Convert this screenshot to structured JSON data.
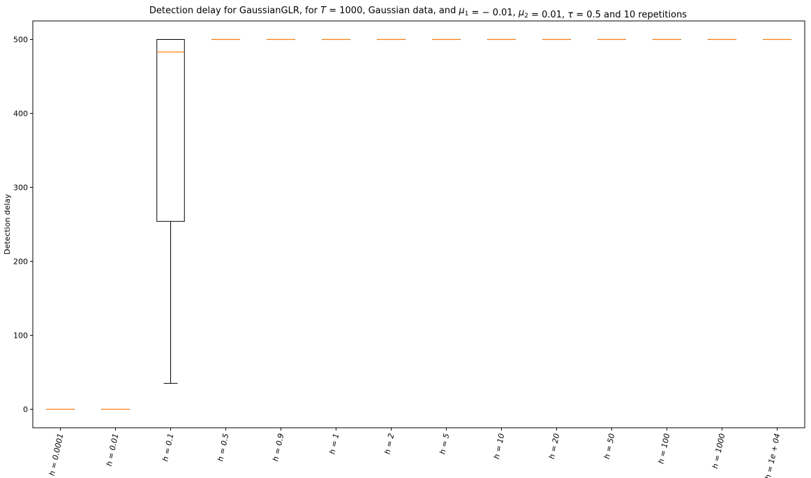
{
  "chart_data": {
    "type": "box",
    "title_text": "Detection delay for GaussianGLR, for T = 1000, Gaussian data, and μ₁ = − 0.01, μ₂ = 0.01, τ = 0.5 and 10 repetitions",
    "title_parts": [
      {
        "text": "Detection delay for GaussianGLR, for ",
        "italic": false
      },
      {
        "text": "T",
        "italic": true
      },
      {
        "text": " = 1000, Gaussian data, and ",
        "italic": false
      },
      {
        "text": "μ",
        "italic": true
      },
      {
        "text": "1",
        "sub": true
      },
      {
        "text": " = − 0.01, ",
        "italic": false
      },
      {
        "text": "μ",
        "italic": true
      },
      {
        "text": "2",
        "sub": true
      },
      {
        "text": " = 0.01, ",
        "italic": false
      },
      {
        "text": "τ",
        "italic": true
      },
      {
        "text": " = 0.5 and 10 repetitions",
        "italic": false
      }
    ],
    "ylabel": "Detection delay",
    "xlabel": "",
    "ylim": [
      -25,
      525
    ],
    "yticks": [
      0,
      100,
      200,
      300,
      400,
      500
    ],
    "categories": [
      "h = 0.0001",
      "h = 0.01",
      "h = 0.1",
      "h = 0.5",
      "h = 0.9",
      "h = 1",
      "h = 2",
      "h = 5",
      "h = 10",
      "h = 20",
      "h = 50",
      "h = 100",
      "h = 1000",
      "h = 1e + 04"
    ],
    "boxes": [
      {
        "whislo": 0,
        "q1": 0,
        "med": 0,
        "q3": 0,
        "whishi": 0
      },
      {
        "whislo": 0,
        "q1": 0,
        "med": 0,
        "q3": 0,
        "whishi": 0
      },
      {
        "whislo": 35,
        "q1": 254,
        "med": 483,
        "q3": 500,
        "whishi": 500
      },
      {
        "whislo": 500,
        "q1": 500,
        "med": 500,
        "q3": 500,
        "whishi": 500
      },
      {
        "whislo": 500,
        "q1": 500,
        "med": 500,
        "q3": 500,
        "whishi": 500
      },
      {
        "whislo": 500,
        "q1": 500,
        "med": 500,
        "q3": 500,
        "whishi": 500
      },
      {
        "whislo": 500,
        "q1": 500,
        "med": 500,
        "q3": 500,
        "whishi": 500
      },
      {
        "whislo": 500,
        "q1": 500,
        "med": 500,
        "q3": 500,
        "whishi": 500
      },
      {
        "whislo": 500,
        "q1": 500,
        "med": 500,
        "q3": 500,
        "whishi": 500
      },
      {
        "whislo": 500,
        "q1": 500,
        "med": 500,
        "q3": 500,
        "whishi": 500
      },
      {
        "whislo": 500,
        "q1": 500,
        "med": 500,
        "q3": 500,
        "whishi": 500
      },
      {
        "whislo": 500,
        "q1": 500,
        "med": 500,
        "q3": 500,
        "whishi": 500
      },
      {
        "whislo": 500,
        "q1": 500,
        "med": 500,
        "q3": 500,
        "whishi": 500
      },
      {
        "whislo": 500,
        "q1": 500,
        "med": 500,
        "q3": 500,
        "whishi": 500
      }
    ],
    "grid": false,
    "colors": {
      "box": "#000000",
      "median": "#ff7f0e",
      "axes": "#000000",
      "background": "#ffffff"
    }
  }
}
